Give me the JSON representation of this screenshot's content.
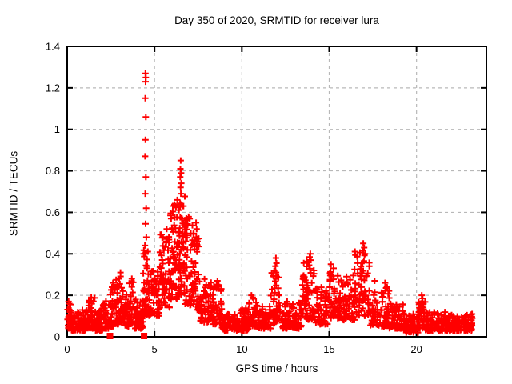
{
  "figure": {
    "background": "#ffffff",
    "border_color": "#000000",
    "marker_color": "#ff0000",
    "grid_color": "#b8b8b8"
  },
  "chart_data": {
    "type": "scatter",
    "title": "Day 350 of 2020, SRMTID for receiver lura",
    "xlabel": "GPS time / hours",
    "ylabel": "SRMTID / TECUs",
    "xlim": [
      0,
      24
    ],
    "ylim": [
      0,
      1.4
    ],
    "x_ticks": [
      [
        0,
        "0"
      ],
      [
        5,
        "5"
      ],
      [
        10,
        "10"
      ],
      [
        15,
        "15"
      ],
      [
        20,
        "20"
      ]
    ],
    "y_ticks": [
      [
        0,
        "0"
      ],
      [
        0.2,
        "0.2"
      ],
      [
        0.4,
        "0.4"
      ],
      [
        0.6,
        "0.6"
      ],
      [
        0.8,
        "0.8"
      ],
      [
        1,
        "1"
      ],
      [
        1.2,
        "1.2"
      ],
      [
        1.4,
        "1.4"
      ]
    ],
    "grid": "dashed",
    "marker": "plus",
    "legend": "none",
    "seed": 11,
    "peak_points": [
      [
        4.48,
        1.27
      ],
      [
        4.5,
        1.25
      ],
      [
        4.49,
        1.23
      ],
      [
        4.47,
        1.15
      ],
      [
        4.5,
        1.06
      ],
      [
        4.48,
        0.95
      ],
      [
        4.46,
        0.87
      ],
      [
        4.5,
        0.77
      ],
      [
        4.47,
        0.69
      ],
      [
        4.52,
        0.62
      ],
      [
        4.49,
        0.545
      ],
      [
        4.53,
        0.48
      ],
      [
        4.45,
        0.44
      ],
      [
        6.5,
        0.85
      ],
      [
        6.48,
        0.81
      ],
      [
        6.52,
        0.79
      ],
      [
        6.47,
        0.77
      ],
      [
        6.53,
        0.74
      ],
      [
        6.49,
        0.72
      ],
      [
        6.51,
        0.69
      ],
      [
        6.3,
        0.66
      ],
      [
        6.22,
        0.63
      ],
      [
        5.95,
        0.57
      ],
      [
        5.7,
        0.52
      ],
      [
        7.38,
        0.55
      ],
      [
        7.41,
        0.52
      ],
      [
        7.39,
        0.48
      ],
      [
        7.42,
        0.45
      ],
      [
        8.1,
        0.25
      ],
      [
        8.6,
        0.27
      ],
      [
        8.55,
        0.25
      ],
      [
        11.95,
        0.38
      ],
      [
        11.98,
        0.355
      ],
      [
        11.92,
        0.34
      ],
      [
        11.96,
        0.31
      ],
      [
        12.0,
        0.29
      ],
      [
        13.92,
        0.4
      ],
      [
        13.88,
        0.385
      ],
      [
        13.95,
        0.37
      ],
      [
        13.85,
        0.345
      ],
      [
        15.1,
        0.35
      ],
      [
        15.25,
        0.33
      ],
      [
        16.95,
        0.45
      ],
      [
        17.0,
        0.43
      ],
      [
        16.9,
        0.415
      ],
      [
        17.05,
        0.4
      ],
      [
        17.6,
        0.27
      ],
      [
        18.2,
        0.26
      ],
      [
        20.3,
        0.2
      ],
      [
        20.35,
        0.185
      ],
      [
        0.08,
        0.17
      ],
      [
        0.12,
        0.16
      ],
      [
        1.38,
        0.19
      ],
      [
        2.62,
        0.26
      ],
      [
        3.05,
        0.31
      ],
      [
        3.7,
        0.28
      ],
      [
        10.55,
        0.2
      ],
      [
        10.62,
        0.19
      ]
    ],
    "square_points": [
      [
        2.45,
        0.0
      ],
      [
        4.4,
        0.0
      ]
    ],
    "density_bands": [
      [
        0.0,
        0.25,
        25,
        0.04,
        0.16,
        1.6
      ],
      [
        0.25,
        1.2,
        80,
        0.03,
        0.13,
        1.8
      ],
      [
        1.2,
        1.6,
        35,
        0.04,
        0.19,
        1.7
      ],
      [
        1.6,
        2.05,
        40,
        0.03,
        0.13,
        1.8
      ],
      [
        2.05,
        2.45,
        35,
        0.04,
        0.18,
        1.7
      ],
      [
        2.45,
        2.8,
        30,
        0.05,
        0.25,
        1.8
      ],
      [
        2.8,
        3.25,
        40,
        0.06,
        0.3,
        1.6
      ],
      [
        3.25,
        3.55,
        28,
        0.05,
        0.22,
        1.7
      ],
      [
        3.55,
        3.85,
        28,
        0.06,
        0.27,
        1.7
      ],
      [
        3.85,
        4.35,
        40,
        0.04,
        0.18,
        1.8
      ],
      [
        4.35,
        4.7,
        45,
        0.1,
        0.42,
        1.3
      ],
      [
        4.7,
        5.3,
        50,
        0.1,
        0.32,
        1.5
      ],
      [
        5.3,
        5.9,
        60,
        0.14,
        0.5,
        1.3
      ],
      [
        5.9,
        6.45,
        70,
        0.18,
        0.65,
        1.2
      ],
      [
        6.45,
        6.75,
        40,
        0.2,
        0.7,
        1.2
      ],
      [
        6.75,
        7.25,
        55,
        0.15,
        0.58,
        1.3
      ],
      [
        7.25,
        7.55,
        30,
        0.12,
        0.48,
        1.4
      ],
      [
        7.55,
        8.3,
        60,
        0.07,
        0.28,
        1.7
      ],
      [
        8.3,
        8.85,
        45,
        0.06,
        0.26,
        1.6
      ],
      [
        8.85,
        10.4,
        110,
        0.03,
        0.14,
        1.8
      ],
      [
        10.4,
        10.85,
        40,
        0.05,
        0.19,
        1.7
      ],
      [
        10.85,
        11.65,
        65,
        0.04,
        0.15,
        1.8
      ],
      [
        11.65,
        12.2,
        45,
        0.06,
        0.33,
        1.5
      ],
      [
        12.2,
        13.45,
        95,
        0.04,
        0.17,
        1.8
      ],
      [
        13.45,
        14.2,
        60,
        0.08,
        0.37,
        1.4
      ],
      [
        14.2,
        14.95,
        55,
        0.06,
        0.24,
        1.7
      ],
      [
        14.95,
        15.6,
        55,
        0.09,
        0.32,
        1.5
      ],
      [
        15.6,
        16.45,
        65,
        0.08,
        0.3,
        1.6
      ],
      [
        16.45,
        17.35,
        70,
        0.1,
        0.42,
        1.4
      ],
      [
        17.35,
        18.45,
        80,
        0.05,
        0.24,
        1.7
      ],
      [
        18.45,
        19.35,
        70,
        0.04,
        0.16,
        1.8
      ],
      [
        19.35,
        20.1,
        55,
        0.02,
        0.11,
        1.8
      ],
      [
        20.1,
        20.5,
        35,
        0.04,
        0.18,
        1.7
      ],
      [
        20.5,
        21.9,
        100,
        0.03,
        0.12,
        1.8
      ],
      [
        21.9,
        23.2,
        90,
        0.03,
        0.11,
        1.8
      ]
    ]
  }
}
